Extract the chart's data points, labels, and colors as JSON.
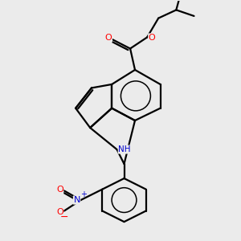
{
  "background_color": "#ebebeb",
  "bond_color": "#000000",
  "bond_width": 1.6,
  "atom_colors": {
    "O": "#ff0000",
    "N": "#0000cd",
    "H": "#3a9a9a",
    "C": "#000000"
  },
  "figsize": [
    3.0,
    3.0
  ],
  "dpi": 100
}
